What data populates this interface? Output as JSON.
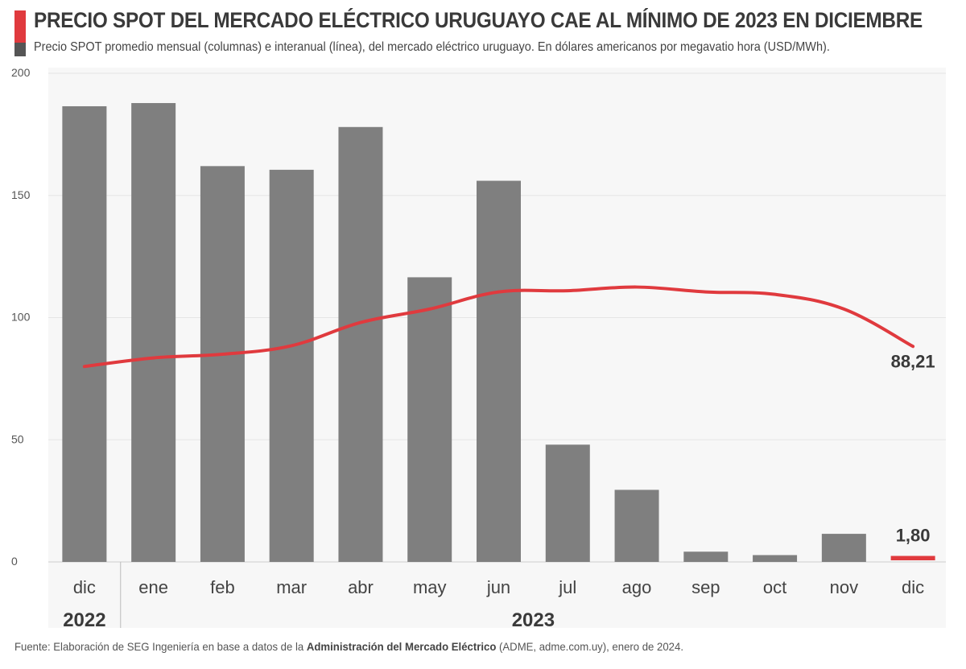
{
  "header": {
    "title": "PRECIO SPOT DEL MERCADO ELÉCTRICO URUGUAYO CAE AL MÍNIMO DE 2023 EN DICIEMBRE",
    "subtitle": "Precio SPOT promedio mensual (columnas) e interanual (línea), del mercado eléctrico uruguayo. En dólares americanos por megavatio hora (USD/MWh)."
  },
  "chart_data": {
    "type": "bar",
    "title": "PRECIO SPOT DEL MERCADO ELÉCTRICO URUGUAYO CAE AL MÍNIMO DE 2023 EN DICIEMBRE",
    "xlabel": "",
    "ylabel": "USD/MWh",
    "ylim": [
      0,
      200
    ],
    "yticks": [
      "0",
      "50",
      "100",
      "150",
      "200"
    ],
    "categories": [
      "dic",
      "ene",
      "feb",
      "mar",
      "abr",
      "may",
      "jun",
      "jul",
      "ago",
      "sep",
      "oct",
      "nov",
      "dic"
    ],
    "year_groups": [
      {
        "label": "2022",
        "count": 1
      },
      {
        "label": "2023",
        "count": 12
      }
    ],
    "series": [
      {
        "name": "Precio SPOT promedio mensual",
        "type": "bar",
        "color": "#7f7f7f",
        "highlight_color": "#e03a3e",
        "values": [
          186.5,
          187.8,
          162.0,
          160.5,
          178.0,
          116.5,
          156.0,
          48.0,
          29.5,
          4.2,
          2.8,
          11.5,
          1.8
        ]
      },
      {
        "name": "Precio SPOT promedio interanual",
        "type": "line",
        "color": "#e03a3e",
        "values": [
          80.0,
          83.5,
          85.0,
          88.5,
          98.0,
          103.5,
          110.5,
          111.0,
          112.5,
          110.5,
          109.5,
          103.5,
          88.21
        ]
      }
    ],
    "annotations": [
      {
        "label": "88,21",
        "series": 1,
        "index": 12
      },
      {
        "label": "1,80",
        "series": 0,
        "index": 12
      }
    ],
    "grid": true,
    "background": "#f7f7f7"
  },
  "footer": {
    "source_prefix": "Fuente: Elaboración de SEG Ingeniería en base a datos de la ",
    "source_bold": "Administración del Mercado Eléctrico",
    "source_suffix": " (ADME, adme.com.uy), enero de 2024."
  }
}
